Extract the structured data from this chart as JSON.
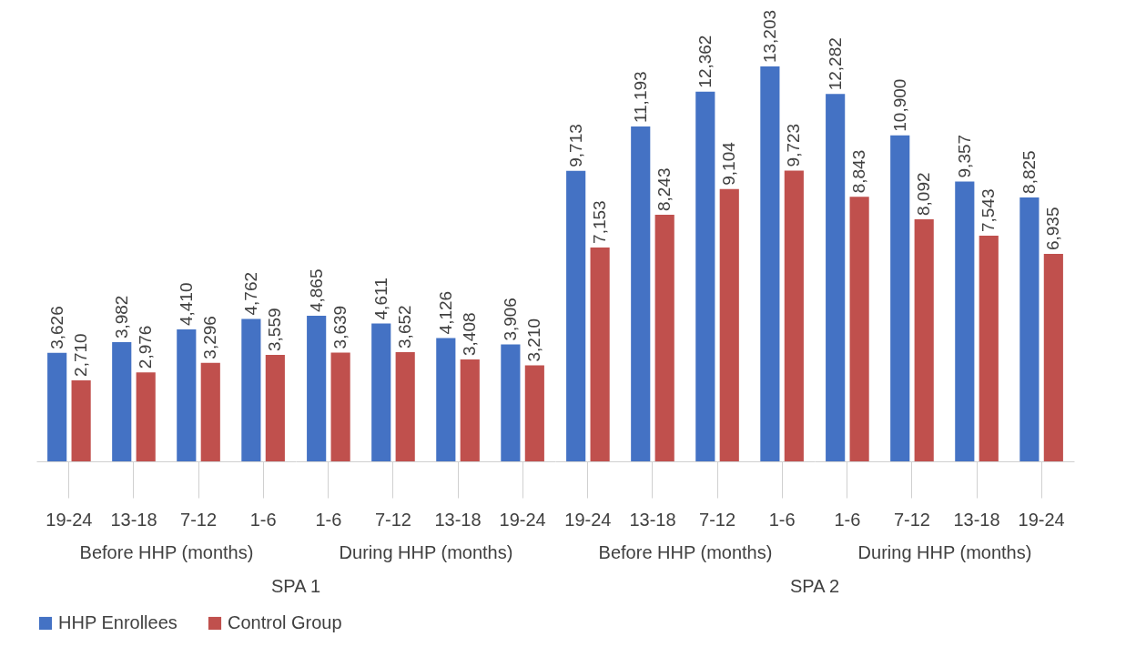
{
  "chart_data": [
    {
      "type": "bar",
      "title": "SPA 1",
      "categories": [
        "19-24",
        "13-18",
        "7-12",
        "1-6",
        "1-6",
        "7-12",
        "13-18",
        "19-24"
      ],
      "annotations": [
        "Before HHP (months)",
        "During HHP (months)"
      ],
      "legend": "bottom",
      "series": [
        {
          "name": "HHP Enrollees",
          "color": "#4472c4",
          "values": [
            3626,
            3982,
            4410,
            4762,
            4865,
            4611,
            4126,
            3906
          ],
          "value_labels": [
            "3,626",
            "3,982",
            "4,410",
            "4,762",
            "4,865",
            "4,611",
            "4,126",
            "3,906"
          ]
        },
        {
          "name": "Control Group",
          "color": "#c0504d",
          "values": [
            2710,
            2976,
            3296,
            3559,
            3639,
            3652,
            3408,
            3210
          ],
          "value_labels": [
            "2,710",
            "2,976",
            "3,296",
            "3,559",
            "3,639",
            "3,652",
            "3,408",
            "3,210"
          ]
        }
      ]
    },
    {
      "type": "bar",
      "title": "SPA 2",
      "categories": [
        "19-24",
        "13-18",
        "7-12",
        "1-6",
        "1-6",
        "7-12",
        "13-18",
        "19-24"
      ],
      "annotations": [
        "Before HHP (months)",
        "During HHP (months)"
      ],
      "legend": "bottom",
      "series": [
        {
          "name": "HHP Enrollees",
          "color": "#4472c4",
          "values": [
            9713,
            11193,
            12362,
            13203,
            12282,
            10900,
            9357,
            8825
          ],
          "value_labels": [
            "9,713",
            "11,193",
            "12,362",
            "13,203",
            "12,282",
            "10,900",
            "9,357",
            "8,825"
          ]
        },
        {
          "name": "Control Group",
          "color": "#c0504d",
          "values": [
            7153,
            8243,
            9104,
            9723,
            8843,
            8092,
            7543,
            6935
          ],
          "value_labels": [
            "7,153",
            "8,243",
            "9,104",
            "9,723",
            "8,843",
            "8,092",
            "7,543",
            "6,935"
          ]
        }
      ]
    }
  ]
}
